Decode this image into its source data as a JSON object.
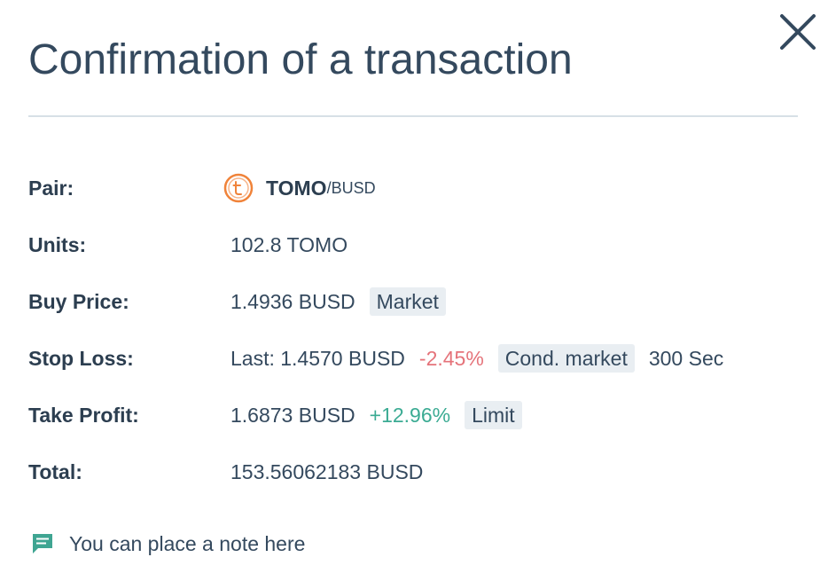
{
  "modal": {
    "title": "Confirmation of a transaction",
    "close_icon": "close-icon"
  },
  "pair": {
    "label": "Pair:",
    "icon": "tomo-coin-icon",
    "icon_color": "#f0833a",
    "base": "TOMO",
    "quote": "/BUSD"
  },
  "units": {
    "label": "Units:",
    "value": "102.8 TOMO"
  },
  "buy_price": {
    "label": "Buy Price:",
    "value": "1.4936 BUSD",
    "type_tag": "Market"
  },
  "stop_loss": {
    "label": "Stop Loss:",
    "value": "Last: 1.4570 BUSD",
    "percent": "-2.45%",
    "percent_color": "#e5737a",
    "type_tag": "Cond. market",
    "timeout": "300 Sec"
  },
  "take_profit": {
    "label": "Take Profit:",
    "value": "1.6873 BUSD",
    "percent": "+12.96%",
    "percent_color": "#3bab93",
    "type_tag": "Limit"
  },
  "total": {
    "label": "Total:",
    "value": "153.56062183 BUSD"
  },
  "note": {
    "icon": "comment-icon",
    "icon_color": "#3fa592",
    "text": "You can place a note here"
  }
}
